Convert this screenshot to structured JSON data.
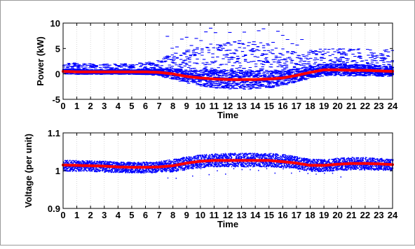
{
  "charts": [
    {
      "id": "power",
      "ylabel": "Power (kW)",
      "xlabel": "Time",
      "xlim": [
        0,
        24
      ],
      "ylim": [
        -5,
        10
      ],
      "xticks": [
        0,
        1,
        2,
        3,
        4,
        5,
        6,
        7,
        8,
        9,
        10,
        11,
        12,
        13,
        14,
        15,
        16,
        17,
        18,
        19,
        20,
        21,
        22,
        23,
        24
      ],
      "yticks": [
        -5,
        0,
        5,
        10
      ],
      "grid": "vertical-dotted"
    },
    {
      "id": "voltage",
      "ylabel": "Voltage (per unit)",
      "xlabel": "Time",
      "xlim": [
        0,
        24
      ],
      "ylim": [
        0.9,
        1.1
      ],
      "xticks": [
        0,
        1,
        2,
        3,
        4,
        5,
        6,
        7,
        8,
        9,
        10,
        11,
        12,
        13,
        14,
        15,
        16,
        17,
        18,
        19,
        20,
        21,
        22,
        23,
        24
      ],
      "yticks": [
        "0.9",
        "1",
        "1.1"
      ],
      "grid": "vertical-dotted"
    }
  ],
  "chart_data": [
    {
      "type": "scatter",
      "ylabel": "Power (kW)",
      "xlabel": "Time",
      "xlim": [
        0,
        24
      ],
      "ylim": [
        -5,
        10
      ],
      "series": [
        {
          "color": "#0000ff",
          "marker": "dash",
          "kind": "scatter-band",
          "x": [
            0,
            1,
            2,
            3,
            4,
            5,
            6,
            7,
            8,
            9,
            10,
            11,
            12,
            13,
            14,
            15,
            16,
            17,
            18,
            19,
            20,
            21,
            22,
            23,
            24
          ],
          "lower": [
            0.0,
            -0.1,
            -0.1,
            -0.1,
            -0.1,
            -0.1,
            -0.1,
            -0.3,
            -0.6,
            -1.0,
            -1.4,
            -1.8,
            -2.0,
            -2.0,
            -2.0,
            -1.9,
            -1.7,
            -1.2,
            -0.6,
            -0.1,
            0.0,
            0.0,
            0.0,
            0.0,
            0.0
          ],
          "upper": [
            2.0,
            2.2,
            2.0,
            2.0,
            2.1,
            2.0,
            2.3,
            2.8,
            4.0,
            4.8,
            5.5,
            6.0,
            6.2,
            6.4,
            6.2,
            6.0,
            5.0,
            4.5,
            4.8,
            5.0,
            5.0,
            5.0,
            4.9,
            4.8,
            4.8
          ]
        },
        {
          "color": "#ff0000",
          "kind": "mean-line",
          "x": [
            0,
            1,
            2,
            3,
            4,
            5,
            6,
            7,
            8,
            9,
            10,
            11,
            12,
            13,
            14,
            15,
            16,
            17,
            18,
            19,
            20,
            21,
            22,
            23,
            24
          ],
          "y": [
            0.5,
            0.4,
            0.4,
            0.4,
            0.4,
            0.4,
            0.4,
            0.3,
            0.0,
            -0.5,
            -0.8,
            -1.0,
            -1.1,
            -1.1,
            -1.1,
            -1.0,
            -0.8,
            -0.3,
            0.3,
            0.8,
            0.8,
            0.7,
            0.7,
            0.6,
            0.5
          ]
        }
      ]
    },
    {
      "type": "scatter",
      "ylabel": "Voltage (per unit)",
      "xlabel": "Time",
      "xlim": [
        0,
        24
      ],
      "ylim": [
        0.9,
        1.1
      ],
      "series": [
        {
          "color": "#0000ff",
          "marker": "dot",
          "kind": "scatter-band",
          "x": [
            0,
            1,
            2,
            3,
            4,
            5,
            6,
            7,
            8,
            9,
            10,
            11,
            12,
            13,
            14,
            15,
            16,
            17,
            18,
            19,
            20,
            21,
            22,
            23,
            24
          ],
          "lower": [
            0.998,
            0.998,
            0.998,
            0.996,
            0.995,
            0.994,
            0.994,
            0.995,
            0.997,
            1.003,
            1.008,
            1.01,
            1.01,
            1.01,
            1.01,
            1.01,
            1.008,
            1.004,
            0.998,
            0.997,
            1.0,
            1.002,
            1.002,
            1.001,
            0.999
          ],
          "upper": [
            1.028,
            1.027,
            1.026,
            1.025,
            1.023,
            1.022,
            1.023,
            1.025,
            1.03,
            1.037,
            1.042,
            1.045,
            1.046,
            1.046,
            1.046,
            1.046,
            1.043,
            1.037,
            1.03,
            1.03,
            1.033,
            1.035,
            1.035,
            1.033,
            1.03
          ]
        },
        {
          "color": "#ff0000",
          "kind": "mean-line",
          "x": [
            0,
            1,
            2,
            3,
            4,
            5,
            6,
            7,
            8,
            9,
            10,
            11,
            12,
            13,
            14,
            15,
            16,
            17,
            18,
            19,
            20,
            21,
            22,
            23,
            24
          ],
          "y": [
            1.015,
            1.014,
            1.013,
            1.012,
            1.01,
            1.009,
            1.009,
            1.01,
            1.013,
            1.02,
            1.025,
            1.027,
            1.027,
            1.027,
            1.027,
            1.027,
            1.024,
            1.02,
            1.014,
            1.014,
            1.017,
            1.019,
            1.019,
            1.018,
            1.016
          ]
        }
      ]
    }
  ]
}
